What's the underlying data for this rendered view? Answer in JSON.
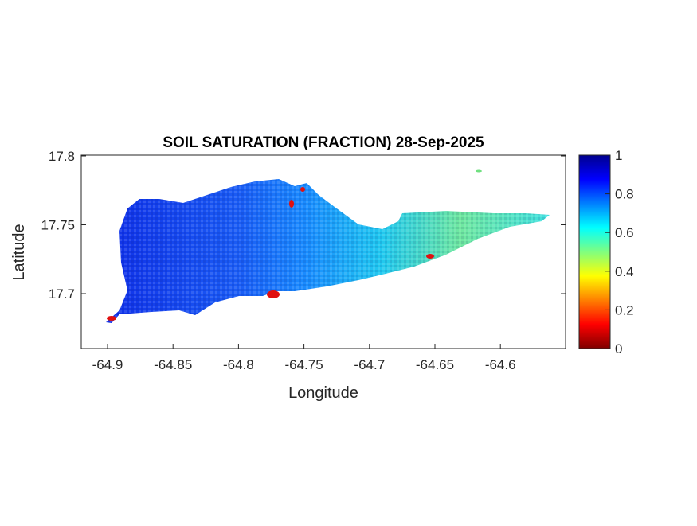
{
  "title": "SOIL SATURATION (FRACTION) 28-Sep-2025",
  "chart_data": {
    "type": "heatmap",
    "title": "SOIL SATURATION (FRACTION) 28-Sep-2025",
    "xlabel": "Longitude",
    "ylabel": "Latitude",
    "xticks": [
      "-64.9",
      "-64.85",
      "-64.8",
      "-64.75",
      "-64.7",
      "-64.65",
      "-64.6"
    ],
    "xtick_values": [
      -64.9,
      -64.85,
      -64.8,
      -64.75,
      -64.7,
      -64.65,
      -64.6
    ],
    "yticks": [
      "17.7",
      "17.75",
      "17.8"
    ],
    "ytick_values": [
      17.7,
      17.75,
      17.8
    ],
    "xlim": [
      -64.92,
      -64.56
    ],
    "ylim": [
      17.66,
      17.8
    ],
    "colormap": "jet",
    "colorbar": {
      "range": [
        0,
        1
      ],
      "ticks": [
        "0",
        "0.2",
        "0.4",
        "0.6",
        "0.8",
        "1"
      ],
      "tick_values": [
        0,
        0.2,
        0.4,
        0.6,
        0.8,
        1
      ],
      "placement": "right"
    },
    "summary": {
      "west_region_typical": 0.85,
      "central_region_typical": 0.7,
      "east_region_typical": 0.55,
      "coastal_low_spots": 0.05
    }
  }
}
